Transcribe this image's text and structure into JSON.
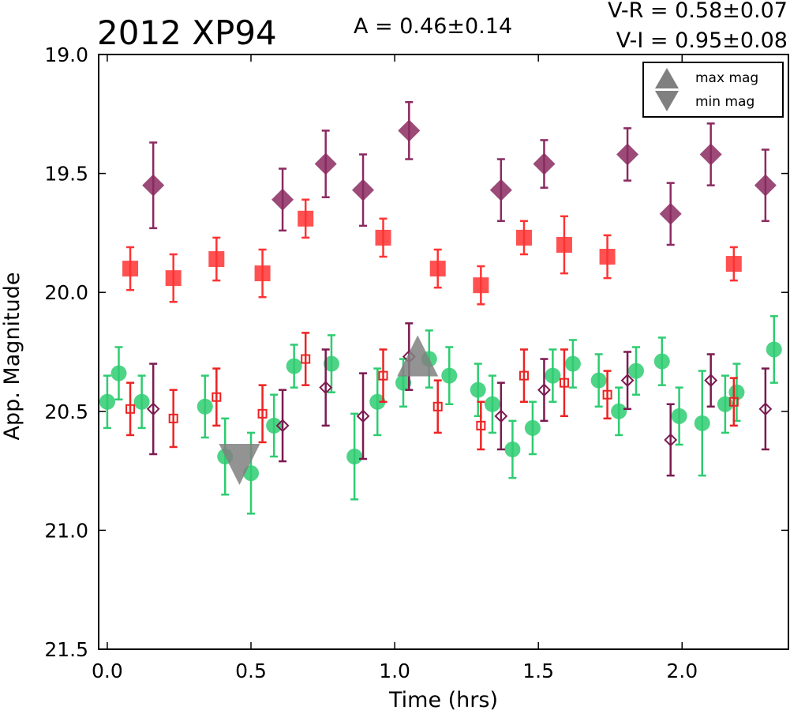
{
  "header": {
    "object_name": "2012 XP94",
    "amplitude": "A  = 0.46±0.14",
    "color_vr": "V-R = 0.58±0.07",
    "color_vi": "V-I  = 0.95±0.08"
  },
  "legend": {
    "max_label": "max mag",
    "min_label": "min mag",
    "max_color": "#808080",
    "min_color": "#808080"
  },
  "chart_data": {
    "type": "scatter",
    "xlabel": "Time (hrs)",
    "ylabel": "App. Magnitude",
    "xlim": [
      -0.03,
      2.37
    ],
    "ylim": [
      21.5,
      19.0
    ],
    "y_inverted": true,
    "xticks": [
      0.0,
      0.5,
      1.0,
      1.5,
      2.0
    ],
    "xtick_labels": [
      "0.0",
      "0.5",
      "1.0",
      "1.5",
      "2.0"
    ],
    "yticks": [
      19.0,
      19.5,
      20.0,
      20.5,
      21.0,
      21.5
    ],
    "ytick_labels": [
      "19.0",
      "19.5",
      "20.0",
      "20.5",
      "21.0",
      "21.5"
    ],
    "grid": false,
    "legend_position": "top-right",
    "series": [
      {
        "marker": "circle",
        "filled": true,
        "color": "#2ecc71",
        "points": [
          {
            "x": 0.0,
            "y": 20.46,
            "err": 0.11
          },
          {
            "x": 0.04,
            "y": 20.34,
            "err": 0.11
          },
          {
            "x": 0.12,
            "y": 20.46,
            "err": 0.11
          },
          {
            "x": 0.34,
            "y": 20.48,
            "err": 0.13
          },
          {
            "x": 0.41,
            "y": 20.69,
            "err": 0.16
          },
          {
            "x": 0.5,
            "y": 20.76,
            "err": 0.17
          },
          {
            "x": 0.58,
            "y": 20.56,
            "err": 0.13
          },
          {
            "x": 0.65,
            "y": 20.31,
            "err": 0.09
          },
          {
            "x": 0.78,
            "y": 20.3,
            "err": 0.12
          },
          {
            "x": 0.86,
            "y": 20.69,
            "err": 0.18
          },
          {
            "x": 0.94,
            "y": 20.46,
            "err": 0.14
          },
          {
            "x": 1.03,
            "y": 20.38,
            "err": 0.1
          },
          {
            "x": 1.12,
            "y": 20.28,
            "err": 0.12
          },
          {
            "x": 1.19,
            "y": 20.35,
            "err": 0.12
          },
          {
            "x": 1.29,
            "y": 20.41,
            "err": 0.11
          },
          {
            "x": 1.34,
            "y": 20.47,
            "err": 0.12
          },
          {
            "x": 1.41,
            "y": 20.66,
            "err": 0.12
          },
          {
            "x": 1.48,
            "y": 20.57,
            "err": 0.11
          },
          {
            "x": 1.55,
            "y": 20.35,
            "err": 0.11
          },
          {
            "x": 1.62,
            "y": 20.3,
            "err": 0.1
          },
          {
            "x": 1.71,
            "y": 20.37,
            "err": 0.11
          },
          {
            "x": 1.78,
            "y": 20.5,
            "err": 0.1
          },
          {
            "x": 1.84,
            "y": 20.33,
            "err": 0.1
          },
          {
            "x": 1.93,
            "y": 20.29,
            "err": 0.1
          },
          {
            "x": 1.99,
            "y": 20.52,
            "err": 0.12
          },
          {
            "x": 2.07,
            "y": 20.55,
            "err": 0.22
          },
          {
            "x": 2.15,
            "y": 20.47,
            "err": 0.12
          },
          {
            "x": 2.19,
            "y": 20.42,
            "err": 0.12
          },
          {
            "x": 2.32,
            "y": 20.24,
            "err": 0.14
          }
        ]
      },
      {
        "marker": "square",
        "filled": false,
        "color": "#ee2222",
        "points": [
          {
            "x": 0.08,
            "y": 20.49,
            "err": 0.11
          },
          {
            "x": 0.23,
            "y": 20.53,
            "err": 0.12
          },
          {
            "x": 0.38,
            "y": 20.44,
            "err": 0.12
          },
          {
            "x": 0.54,
            "y": 20.51,
            "err": 0.12
          },
          {
            "x": 0.69,
            "y": 20.28,
            "err": 0.11
          },
          {
            "x": 0.96,
            "y": 20.35,
            "err": 0.11
          },
          {
            "x": 1.15,
            "y": 20.48,
            "err": 0.11
          },
          {
            "x": 1.3,
            "y": 20.56,
            "err": 0.1
          },
          {
            "x": 1.45,
            "y": 20.35,
            "err": 0.11
          },
          {
            "x": 1.59,
            "y": 20.38,
            "err": 0.14
          },
          {
            "x": 1.74,
            "y": 20.43,
            "err": 0.1
          },
          {
            "x": 2.18,
            "y": 20.46,
            "err": 0.1
          }
        ]
      },
      {
        "marker": "diamond",
        "filled": false,
        "color": "#7b1a4f",
        "points": [
          {
            "x": 0.16,
            "y": 20.49,
            "err": 0.19
          },
          {
            "x": 0.61,
            "y": 20.56,
            "err": 0.15
          },
          {
            "x": 0.76,
            "y": 20.4,
            "err": 0.16
          },
          {
            "x": 0.89,
            "y": 20.52,
            "err": 0.18
          },
          {
            "x": 1.05,
            "y": 20.27,
            "err": 0.14
          },
          {
            "x": 1.37,
            "y": 20.52,
            "err": 0.14
          },
          {
            "x": 1.52,
            "y": 20.41,
            "err": 0.13
          },
          {
            "x": 1.81,
            "y": 20.37,
            "err": 0.12
          },
          {
            "x": 1.96,
            "y": 20.62,
            "err": 0.15
          },
          {
            "x": 2.1,
            "y": 20.37,
            "err": 0.11
          },
          {
            "x": 2.29,
            "y": 20.49,
            "err": 0.17
          }
        ]
      },
      {
        "marker": "square",
        "filled": true,
        "color": "#ff3333",
        "points": [
          {
            "x": 0.08,
            "y": 19.9,
            "err": 0.09
          },
          {
            "x": 0.23,
            "y": 19.94,
            "err": 0.1
          },
          {
            "x": 0.38,
            "y": 19.86,
            "err": 0.09
          },
          {
            "x": 0.54,
            "y": 19.92,
            "err": 0.1
          },
          {
            "x": 0.69,
            "y": 19.69,
            "err": 0.08
          },
          {
            "x": 0.96,
            "y": 19.77,
            "err": 0.08
          },
          {
            "x": 1.15,
            "y": 19.9,
            "err": 0.08
          },
          {
            "x": 1.3,
            "y": 19.97,
            "err": 0.08
          },
          {
            "x": 1.45,
            "y": 19.77,
            "err": 0.07
          },
          {
            "x": 1.59,
            "y": 19.8,
            "err": 0.12
          },
          {
            "x": 1.74,
            "y": 19.85,
            "err": 0.09
          },
          {
            "x": 2.18,
            "y": 19.88,
            "err": 0.07
          }
        ]
      },
      {
        "marker": "diamond",
        "filled": true,
        "color": "#8b2a60",
        "points": [
          {
            "x": 0.16,
            "y": 19.55,
            "err": 0.18
          },
          {
            "x": 0.61,
            "y": 19.61,
            "err": 0.13
          },
          {
            "x": 0.76,
            "y": 19.46,
            "err": 0.14
          },
          {
            "x": 0.89,
            "y": 19.57,
            "err": 0.15
          },
          {
            "x": 1.05,
            "y": 19.32,
            "err": 0.12
          },
          {
            "x": 1.37,
            "y": 19.57,
            "err": 0.13
          },
          {
            "x": 1.52,
            "y": 19.46,
            "err": 0.1
          },
          {
            "x": 1.81,
            "y": 19.42,
            "err": 0.11
          },
          {
            "x": 1.96,
            "y": 19.67,
            "err": 0.13
          },
          {
            "x": 2.1,
            "y": 19.42,
            "err": 0.13
          },
          {
            "x": 2.29,
            "y": 19.55,
            "err": 0.15
          }
        ]
      }
    ],
    "extrema": [
      {
        "label": "max mag",
        "x": 1.08,
        "y": 20.28,
        "color": "#808080"
      },
      {
        "label": "min mag",
        "x": 0.46,
        "y": 20.71,
        "color": "#808080"
      }
    ]
  }
}
